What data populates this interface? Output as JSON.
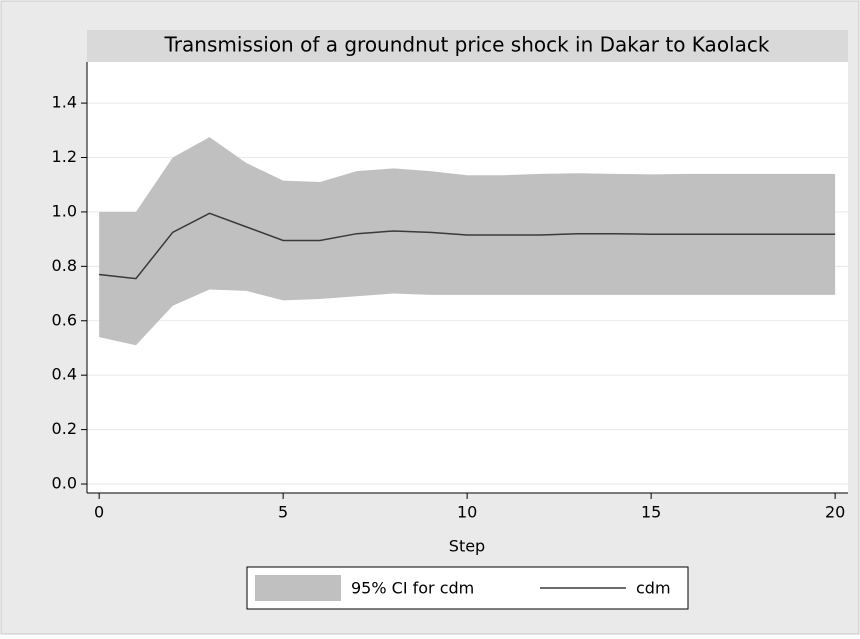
{
  "chart_data": {
    "type": "band-line",
    "title": "Transmission of a groundnut price shock in Dakar to Kaolack",
    "x_label": "Step",
    "x": [
      0,
      1,
      2,
      3,
      4,
      5,
      6,
      7,
      8,
      9,
      10,
      11,
      12,
      13,
      14,
      15,
      16,
      17,
      18,
      19,
      20
    ],
    "series": [
      {
        "name": "95% CI for cdm",
        "color": "#c0c0c0",
        "upper": [
          1.0,
          1.0,
          1.2,
          1.275,
          1.18,
          1.115,
          1.11,
          1.15,
          1.16,
          1.15,
          1.135,
          1.135,
          1.14,
          1.142,
          1.14,
          1.138,
          1.14,
          1.14,
          1.14,
          1.14,
          1.14
        ],
        "lower": [
          0.54,
          0.51,
          0.655,
          0.715,
          0.71,
          0.675,
          0.68,
          0.69,
          0.7,
          0.695,
          0.695,
          0.695,
          0.695,
          0.695,
          0.695,
          0.695,
          0.695,
          0.695,
          0.695,
          0.695,
          0.695
        ]
      },
      {
        "name": "cdm",
        "color": "#3a3a3a",
        "values": [
          0.77,
          0.755,
          0.925,
          0.995,
          0.945,
          0.895,
          0.895,
          0.92,
          0.93,
          0.925,
          0.915,
          0.915,
          0.915,
          0.92,
          0.92,
          0.918,
          0.918,
          0.918,
          0.918,
          0.918,
          0.918
        ]
      }
    ],
    "xlim": [
      -0.33,
      20.35
    ],
    "xticks": [
      0,
      5,
      10,
      15,
      20
    ],
    "ylim": [
      -0.033,
      1.551
    ],
    "yticks": [
      {
        "value": 0,
        "label": "0.0"
      },
      0.2,
      0.4,
      0.6,
      0.8,
      {
        "value": 1,
        "label": "1.0"
      },
      1.2,
      1.4
    ],
    "grid": true
  }
}
